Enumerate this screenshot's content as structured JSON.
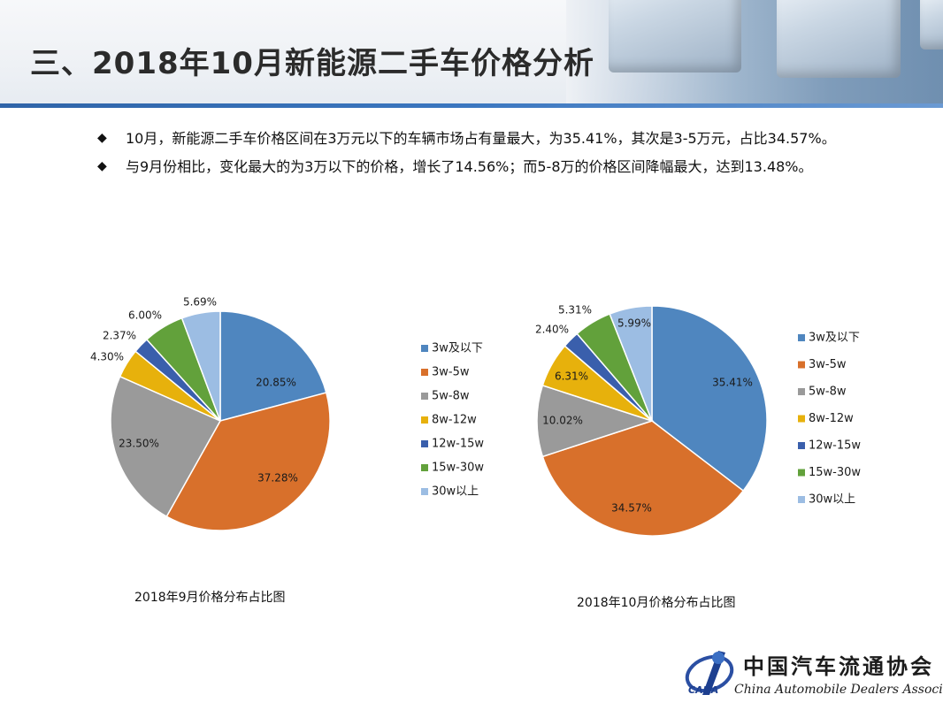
{
  "header": {
    "title": "三、2018年10月新能源二手车价格分析"
  },
  "bullets": [
    "10月，新能源二手车价格区间在3万元以下的车辆市场占有量最大，为35.41%，其次是3-5万元，占比34.57%。",
    "与9月份相比，变化最大的为3万以下的价格，增长了14.56%；而5-8万的价格区间降幅最大，达到13.48%。"
  ],
  "bullet_marker": "◆",
  "chart_data": [
    {
      "type": "pie",
      "caption": "2018年9月价格分布占比图",
      "title": "",
      "categories": [
        "3w及以下",
        "3w-5w",
        "5w-8w",
        "8w-12w",
        "12w-15w",
        "15w-30w",
        "30w以上"
      ],
      "values": [
        20.85,
        37.28,
        23.5,
        4.3,
        2.37,
        6.0,
        5.69
      ],
      "labels": [
        "20.85%",
        "37.28%",
        "23.50%",
        "4.30%",
        "2.37%",
        "6.00%",
        "5.69%"
      ],
      "colors": [
        "#4f86bf",
        "#d8702b",
        "#9a9a9a",
        "#e7b10c",
        "#3a5fac",
        "#62a13b",
        "#9cbde3"
      ],
      "start": "12 o'clock, clockwise",
      "legend": "right"
    },
    {
      "type": "pie",
      "caption": "2018年10月价格分布占比图",
      "title": "",
      "categories": [
        "3w及以下",
        "3w-5w",
        "5w-8w",
        "8w-12w",
        "12w-15w",
        "15w-30w",
        "30w以上"
      ],
      "values": [
        35.41,
        34.57,
        10.02,
        6.31,
        2.4,
        5.31,
        5.99
      ],
      "labels": [
        "35.41%",
        "34.57%",
        "10.02%",
        "6.31%",
        "2.40%",
        "5.31%",
        "5.99%"
      ],
      "colors": [
        "#4f86bf",
        "#d8702b",
        "#9a9a9a",
        "#e7b10c",
        "#3a5fac",
        "#62a13b",
        "#9cbde3"
      ],
      "start": "12 o'clock, clockwise",
      "legend": "right"
    }
  ],
  "logo": {
    "name_cn": "中国汽车流通协会",
    "name_en": "China Automobile Dealers Association",
    "abbr": "CADA"
  }
}
